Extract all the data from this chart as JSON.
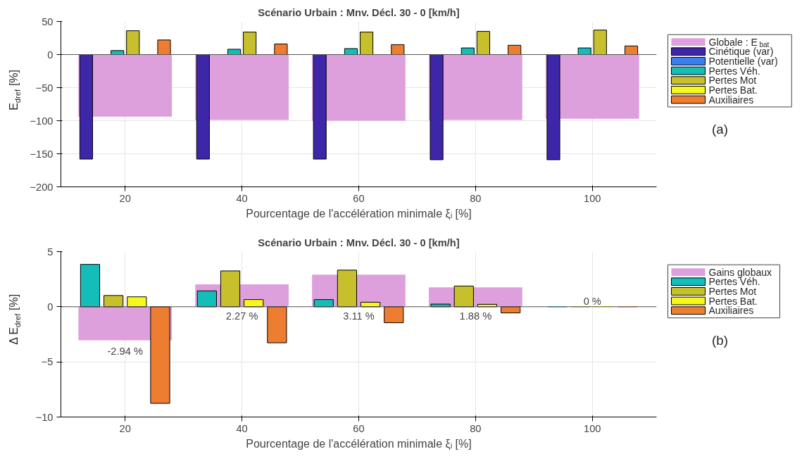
{
  "chart_data": [
    {
      "type": "bar",
      "title": "Scénario Urbain : Mnv. Décl. 30 - 0 [km/h]",
      "xlabel": "Pourcentage de l'accélération minimale ξᵢ [%]",
      "ylabel": "E$_{dref}$ [%]",
      "x": [
        20,
        40,
        60,
        80,
        100
      ],
      "xlim": [
        9,
        111
      ],
      "xticks": [
        20,
        40,
        60,
        80,
        100
      ],
      "ylim": [
        -200,
        50
      ],
      "yticks": [
        -200,
        -150,
        -100,
        -50,
        0,
        50
      ],
      "grid": true,
      "legend": "right",
      "series": [
        {
          "name": "Globale : E$_{bat}$",
          "color": "#dda0dd",
          "values": [
            -94,
            -99,
            -100,
            -99,
            -97
          ]
        },
        {
          "name": "Cinétique (var)",
          "color": "#3d26a8",
          "values": [
            -158,
            -158,
            -158,
            -159,
            -159
          ]
        },
        {
          "name": "Potentielle (var)",
          "color": "#3a7ff0",
          "values": [
            0,
            0,
            0,
            0,
            0
          ]
        },
        {
          "name": "Pertes Véh.",
          "color": "#14bdb8",
          "values": [
            6,
            8,
            9,
            10,
            10
          ]
        },
        {
          "name": "Pertes Mot",
          "color": "#c7c02c",
          "values": [
            36,
            34,
            34,
            35,
            37
          ]
        },
        {
          "name": "Pertes Bat.",
          "color": "#f7f71a",
          "values": [
            0,
            0,
            0,
            0,
            0
          ]
        },
        {
          "name": "Auxiliaires",
          "color": "#ed7d31",
          "values": [
            22,
            16,
            15,
            14,
            13
          ]
        }
      ],
      "annotations": [
        "(a)"
      ]
    },
    {
      "type": "bar",
      "title": "Scénario Urbain : Mnv. Décl. 30 - 0 [km/h]",
      "xlabel": "Pourcentage de l'accélération minimale ξᵢ [%]",
      "ylabel": "Δ E$_{dref}$ [%]",
      "x": [
        20,
        40,
        60,
        80,
        100
      ],
      "xlim": [
        9,
        111
      ],
      "xticks": [
        20,
        40,
        60,
        80,
        100
      ],
      "ylim": [
        -10,
        5
      ],
      "yticks": [
        -10,
        -5,
        0,
        5
      ],
      "grid": true,
      "legend": "right",
      "series": [
        {
          "name": "Gains globaux",
          "color": "#dda0dd",
          "values": [
            -3.05,
            2.03,
            2.91,
            1.76,
            0
          ]
        },
        {
          "name": "Pertes Véh.",
          "color": "#14bdb8",
          "values": [
            3.84,
            1.44,
            0.65,
            0.24,
            0
          ]
        },
        {
          "name": "Pertes Mot",
          "color": "#c7c02c",
          "values": [
            1.02,
            3.25,
            3.32,
            1.88,
            0
          ]
        },
        {
          "name": "Pertes Bat.",
          "color": "#f7f71a",
          "values": [
            0.9,
            0.65,
            0.41,
            0.22,
            0
          ]
        },
        {
          "name": "Auxiliaires",
          "color": "#ed7d31",
          "values": [
            -8.76,
            -3.27,
            -1.45,
            -0.56,
            0
          ]
        }
      ],
      "annotations": [
        "-2.94 %",
        "2.27 %",
        "3.11 %",
        "1.88 %",
        "0 %",
        "(b)"
      ]
    }
  ]
}
